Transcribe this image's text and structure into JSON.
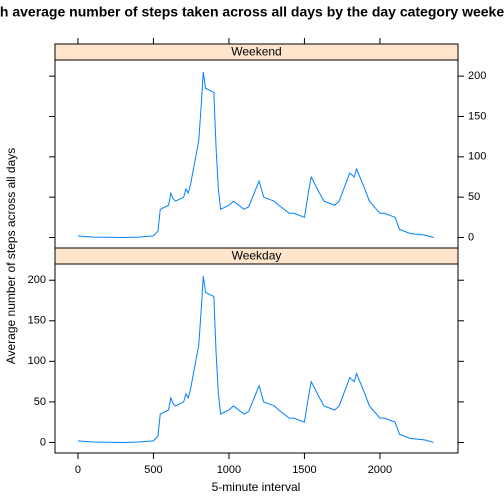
{
  "chart_data": {
    "type": "line",
    "title": "h average number of steps taken across all days by the day category weeke",
    "xlabel": "5-minute interval",
    "ylabel": "Average number of steps across all days",
    "color": "#0080ff",
    "strip_color": "#ffe5cc",
    "x": [
      0,
      100,
      200,
      300,
      400,
      500,
      530,
      545,
      600,
      615,
      630,
      645,
      700,
      715,
      730,
      745,
      800,
      815,
      830,
      845,
      900,
      915,
      930,
      945,
      1000,
      1030,
      1100,
      1130,
      1200,
      1230,
      1300,
      1330,
      1400,
      1430,
      1500,
      1530,
      1545,
      1600,
      1630,
      1700,
      1730,
      1800,
      1830,
      1845,
      1900,
      1930,
      2000,
      2030,
      2100,
      2130,
      2200,
      2300,
      2355
    ],
    "series": [
      {
        "name": "Weekend",
        "values": [
          2,
          0.5,
          0.3,
          0,
          0.5,
          2,
          8,
          35,
          40,
          55,
          48,
          45,
          50,
          60,
          55,
          65,
          120,
          160,
          205,
          185,
          180,
          110,
          60,
          35,
          40,
          45,
          35,
          38,
          70,
          50,
          45,
          40,
          30,
          30,
          25,
          60,
          75,
          55,
          45,
          40,
          45,
          80,
          75,
          85,
          60,
          45,
          30,
          30,
          25,
          10,
          5,
          3,
          0
        ]
      },
      {
        "name": "Weekday",
        "values": [
          2,
          0.5,
          0.3,
          0,
          0.5,
          2,
          8,
          35,
          40,
          55,
          48,
          45,
          50,
          60,
          55,
          65,
          120,
          160,
          205,
          185,
          180,
          110,
          60,
          35,
          40,
          45,
          35,
          38,
          70,
          50,
          45,
          40,
          30,
          30,
          25,
          60,
          75,
          55,
          45,
          40,
          45,
          80,
          75,
          85,
          60,
          45,
          30,
          30,
          25,
          10,
          5,
          3,
          0
        ]
      }
    ],
    "xlim": [
      -152,
      2517
    ],
    "ylim": [
      -13,
      220
    ],
    "xticks": [
      0,
      500,
      1000,
      1500,
      2000
    ],
    "yticks": [
      0,
      50,
      100,
      150,
      200
    ]
  }
}
